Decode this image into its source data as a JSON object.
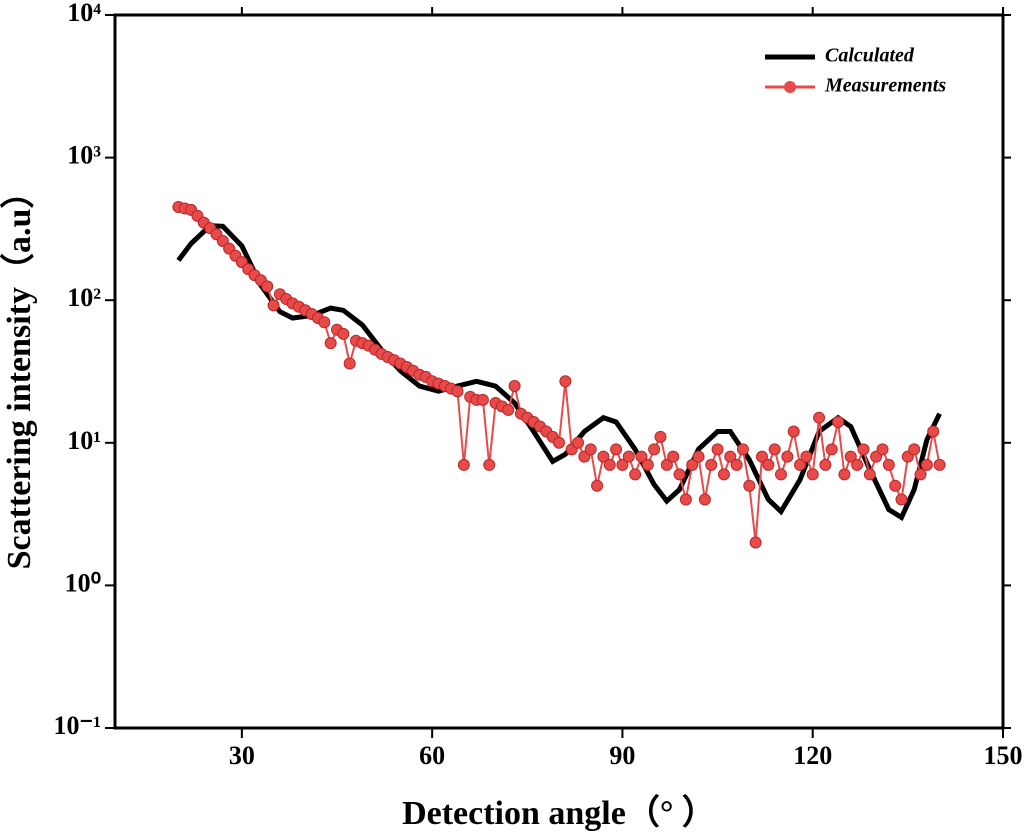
{
  "chart_data": {
    "type": "line",
    "x_label": "Detection angle（°  ）",
    "y_label": "Scattering intensity（a.u）",
    "xlim": [
      10,
      150
    ],
    "xticks": [
      30,
      60,
      90,
      120,
      150
    ],
    "ylim": [
      0.1,
      10000
    ],
    "log_y": true,
    "yticks": [
      {
        "value": 0.1,
        "label": "10⁻¹"
      },
      {
        "value": 1,
        "label": "10⁰"
      },
      {
        "value": 10,
        "label": "10¹"
      },
      {
        "value": 100,
        "label": "10²"
      },
      {
        "value": 1000,
        "label": "10³"
      },
      {
        "value": 10000,
        "label": "10⁴"
      }
    ],
    "legend": "upper right",
    "series": [
      {
        "name": "Calculated",
        "color": "#000000",
        "markers": false,
        "x": [
          20,
          22,
          25,
          27,
          30,
          33,
          36,
          38,
          41,
          44,
          46,
          49,
          52,
          55,
          58,
          61,
          64,
          67,
          70,
          73,
          76,
          79,
          81,
          84,
          87,
          89,
          92,
          95,
          97,
          99,
          102,
          105,
          107,
          110,
          113,
          115,
          118,
          121,
          124,
          126,
          129,
          132,
          134,
          136,
          138,
          140
        ],
        "values": [
          190,
          250,
          333,
          330,
          240,
          127,
          83,
          75,
          78,
          88,
          85,
          67,
          45,
          32,
          25,
          23,
          25,
          27,
          25,
          19,
          12,
          7.4,
          8.3,
          12,
          15,
          14,
          9,
          5.1,
          3.9,
          4.7,
          9,
          12,
          12,
          7.6,
          4,
          3.3,
          5.5,
          12,
          15,
          13,
          6.5,
          3.4,
          3,
          4.7,
          10.5,
          16
        ]
      },
      {
        "name": "Measurements",
        "color": "#e84a4a",
        "markers": true,
        "x": [
          20,
          21,
          22,
          23,
          24,
          25,
          26,
          27,
          28,
          29,
          30,
          31,
          32,
          33,
          34,
          35,
          36,
          37,
          38,
          39,
          40,
          41,
          42,
          43,
          44,
          45,
          46,
          47,
          48,
          49,
          50,
          51,
          52,
          53,
          54,
          55,
          56,
          57,
          58,
          59,
          60,
          61,
          62,
          63,
          64,
          65,
          66,
          67,
          68,
          69,
          70,
          71,
          72,
          73,
          74,
          75,
          76,
          77,
          78,
          79,
          80,
          81,
          82,
          83,
          84,
          85,
          86,
          87,
          88,
          89,
          90,
          91,
          92,
          93,
          94,
          95,
          96,
          97,
          98,
          99,
          100,
          101,
          102,
          103,
          104,
          105,
          106,
          107,
          108,
          109,
          110,
          111,
          112,
          113,
          114,
          115,
          116,
          117,
          118,
          119,
          120,
          121,
          122,
          123,
          124,
          125,
          126,
          127,
          128,
          129,
          130,
          131,
          132,
          133,
          134,
          135,
          136,
          137,
          138,
          139,
          140
        ],
        "values": [
          450,
          440,
          430,
          390,
          350,
          320,
          290,
          260,
          230,
          205,
          185,
          165,
          150,
          138,
          125,
          92,
          110,
          102,
          95,
          90,
          85,
          80,
          75,
          70,
          50,
          62,
          58,
          36,
          52,
          50,
          48,
          45,
          42,
          40,
          38,
          36,
          34,
          32,
          30,
          29,
          27,
          26,
          25,
          24,
          23,
          7,
          21,
          20,
          20,
          7,
          19,
          18,
          17,
          25,
          16,
          15,
          14,
          13,
          12,
          11,
          10,
          27,
          9,
          10,
          8,
          9,
          5,
          8,
          7,
          9,
          7,
          8,
          6,
          8,
          7,
          9,
          11,
          7,
          8,
          6,
          4,
          7,
          8,
          4,
          7,
          9,
          6,
          8,
          7,
          9,
          5,
          2,
          8,
          7,
          9,
          6,
          8,
          12,
          7,
          8,
          6,
          15,
          7,
          9,
          14,
          6,
          8,
          7,
          9,
          6,
          8,
          9,
          7,
          5,
          4,
          8,
          9,
          6,
          7,
          12,
          7
        ]
      }
    ]
  }
}
